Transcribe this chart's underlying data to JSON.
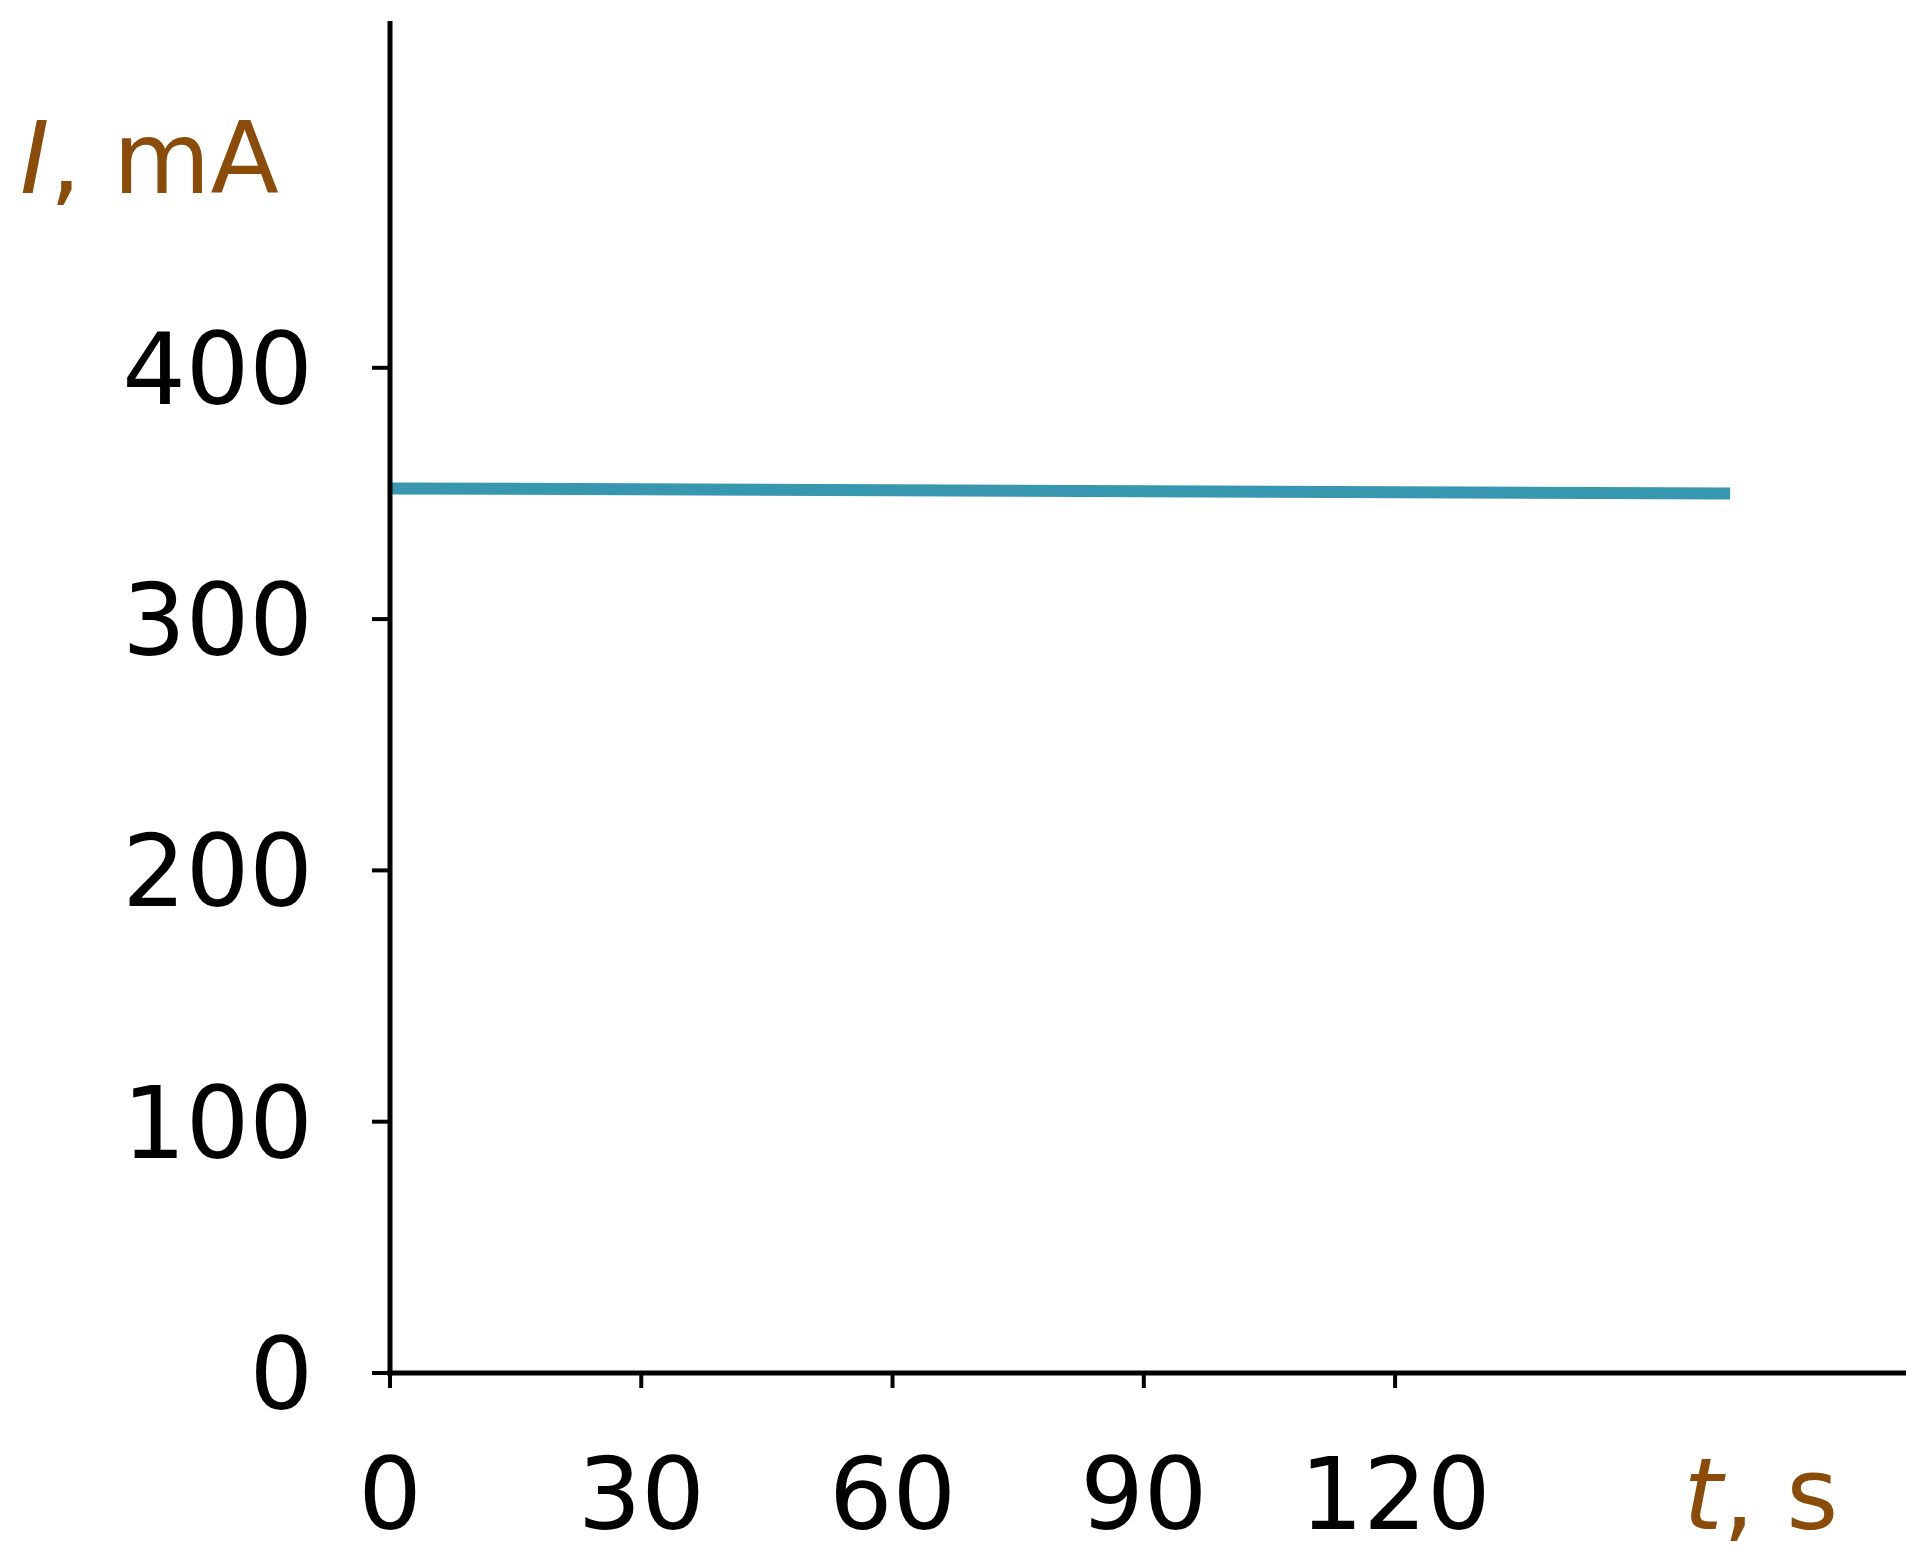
{
  "chart_data": {
    "type": "line",
    "xlabel": "t, s",
    "ylabel": "I, mA",
    "x": [
      0,
      160
    ],
    "series": [
      {
        "color": "#3797ae",
        "values": [
          352,
          350
        ]
      }
    ],
    "xlim": [
      0,
      181
    ],
    "ylim": [
      0,
      538
    ],
    "xticks": [
      0,
      30,
      60,
      90,
      120
    ],
    "yticks": [
      0,
      100,
      200,
      300,
      400
    ],
    "line_style": "solid"
  }
}
